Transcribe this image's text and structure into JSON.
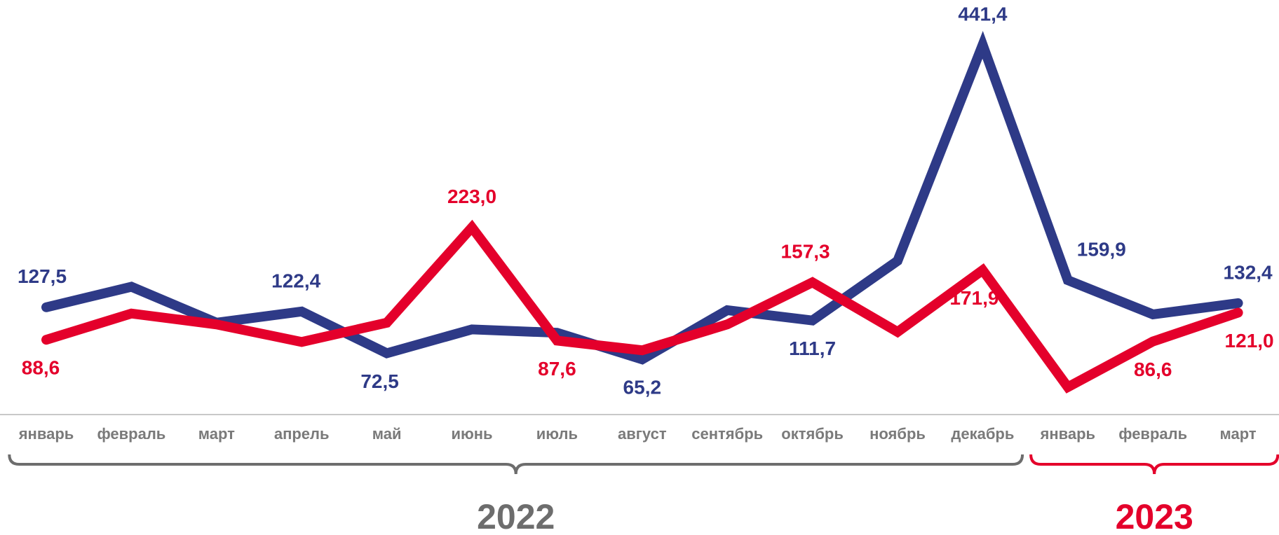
{
  "chart_data": {
    "type": "line",
    "categories": [
      "январь",
      "февраль",
      "март",
      "апрель",
      "май",
      "июнь",
      "июль",
      "август",
      "сентябрь",
      "октябрь",
      "ноябрь",
      "декабрь",
      "январь",
      "февраль",
      "март"
    ],
    "series": [
      {
        "color": "#2e3a87",
        "values": [
          127.5,
          152,
          109,
          122.4,
          72.5,
          101,
          97,
          65.2,
          124,
          111.7,
          183,
          441.4,
          159.9,
          119,
          132.4
        ],
        "value_labels": [
          "127,5",
          null,
          null,
          "122,4",
          "72,5",
          null,
          null,
          "65,2",
          null,
          "111,7",
          null,
          "441,4",
          "159,9",
          null,
          "132,4"
        ]
      },
      {
        "color": "#e4002b",
        "values": [
          88.6,
          120,
          107,
          86,
          109,
          223.0,
          87.6,
          76,
          107,
          157.3,
          98,
          171.9,
          32,
          86.6,
          121.0
        ],
        "value_labels": [
          "88,6",
          null,
          null,
          null,
          null,
          "223,0",
          "87,6",
          null,
          null,
          "157,3",
          null,
          "171,9",
          null,
          "86,6",
          "121,0"
        ]
      }
    ],
    "groups": [
      {
        "label": "2022",
        "span": [
          0,
          11
        ],
        "color": "#6d6d6d"
      },
      {
        "label": "2023",
        "span": [
          12,
          14
        ],
        "color": "#e4002b"
      }
    ]
  }
}
